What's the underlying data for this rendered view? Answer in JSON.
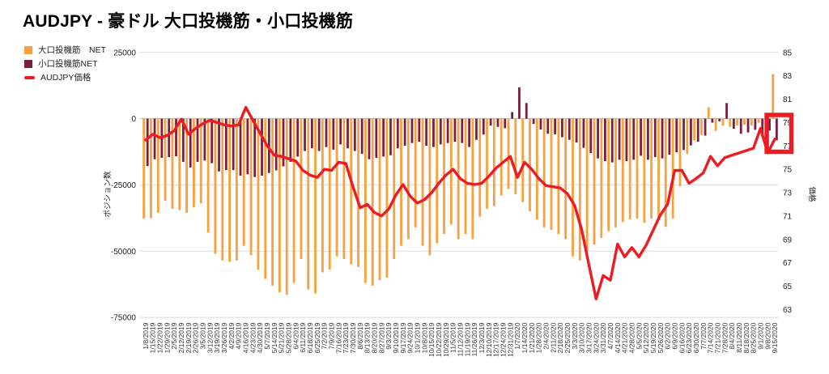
{
  "title": "AUDJPY - 豪ドル 大口投機筋・小口投機筋",
  "legend": {
    "items": [
      {
        "label": "大口投機筋　NET",
        "color": "#F8A13E",
        "shape": "square"
      },
      {
        "label": "小口投機筋NET",
        "color": "#7B1F3E",
        "shape": "square"
      },
      {
        "label": "AUDJPY価格",
        "color": "#EC1C24",
        "shape": "line"
      }
    ]
  },
  "axes": {
    "left": {
      "title": "ポジション数",
      "ticks": [
        "25000",
        "0",
        "-25000",
        "-50000",
        "-75000"
      ]
    },
    "right": {
      "title": "価格",
      "ticks": [
        "85",
        "83",
        "81",
        "79",
        "77",
        "75",
        "73",
        "71",
        "69",
        "67",
        "65",
        "63"
      ]
    }
  },
  "annotation": {
    "type": "rect",
    "color": "#ED1C24",
    "note": "red box highlighting latest week bars"
  },
  "chart_data": {
    "type": "bar+line",
    "title": "AUDJPY - 豪ドル 大口投機筋・小口投機筋",
    "ylabel_left": "ポジション数",
    "ylabel_right": "価格",
    "ylim_left": [
      -75000,
      25000
    ],
    "ylim_right": [
      63,
      85
    ],
    "grid_values_left": [
      25000,
      0,
      -25000,
      -50000,
      -75000
    ],
    "legend_position": "top-left",
    "categories": [
      "1/8/2019",
      "1/15/2019",
      "1/22/2019",
      "1/29/2019",
      "2/5/2019",
      "2/12/2019",
      "2/19/2019",
      "2/26/2019",
      "3/5/2019",
      "3/12/2019",
      "3/19/2019",
      "3/26/2019",
      "4/2/2019",
      "4/9/2019",
      "4/16/2019",
      "4/23/2019",
      "4/30/2019",
      "5/7/2019",
      "5/14/2019",
      "5/21/2019",
      "5/28/2019",
      "6/4/2019",
      "6/11/2019",
      "6/18/2019",
      "6/25/2019",
      "7/2/2019",
      "7/9/2019",
      "7/16/2019",
      "7/23/2019",
      "7/30/2019",
      "8/6/2019",
      "8/13/2019",
      "8/20/2019",
      "8/27/2019",
      "9/3/2019",
      "9/10/2019",
      "9/17/2019",
      "9/24/2019",
      "10/1/2019",
      "10/8/2019",
      "10/15/2019",
      "10/22/2019",
      "10/29/2019",
      "11/5/2019",
      "11/12/2019",
      "11/19/2019",
      "11/26/2019",
      "12/3/2019",
      "12/10/2019",
      "12/17/2019",
      "12/24/2019",
      "12/31/2019",
      "1/7/2020",
      "1/14/2020",
      "1/21/2020",
      "1/28/2020",
      "2/4/2020",
      "2/11/2020",
      "2/18/2020",
      "2/25/2020",
      "3/3/2020",
      "3/10/2020",
      "3/17/2020",
      "3/24/2020",
      "3/31/2020",
      "4/7/2020",
      "4/14/2020",
      "4/21/2020",
      "4/28/2020",
      "5/5/2020",
      "5/12/2020",
      "5/19/2020",
      "5/26/2020",
      "6/2/2020",
      "6/9/2020",
      "6/16/2020",
      "6/23/2020",
      "6/30/2020",
      "7/7/2020",
      "7/14/2020",
      "7/21/2020",
      "7/28/2020",
      "8/4/2020",
      "8/11/2020",
      "8/18/2020",
      "8/25/2020",
      "9/1/2020",
      "9/8/2020",
      "9/15/2020"
    ],
    "series": [
      {
        "name": "大口投機筋　NET",
        "type": "bar",
        "axis": "left",
        "color": "#F8A13E",
        "values": [
          -37700,
          -37500,
          -35500,
          -31000,
          -34000,
          -34500,
          -35500,
          -33500,
          -32000,
          -43000,
          -51000,
          -53500,
          -54000,
          -53500,
          -48000,
          -51500,
          -57000,
          -60500,
          -63000,
          -65500,
          -66500,
          -62000,
          -53000,
          -64500,
          -66000,
          -58000,
          -57000,
          -52000,
          -53000,
          -55000,
          -56000,
          -62000,
          -63000,
          -61000,
          -60000,
          -53000,
          -48000,
          -45500,
          -41000,
          -48000,
          -51500,
          -47000,
          -43500,
          -40000,
          -45500,
          -43500,
          -45500,
          -37000,
          -34000,
          -33000,
          -29000,
          -26500,
          -28500,
          -31500,
          -35000,
          -38000,
          -41000,
          -42000,
          -43500,
          -45500,
          -52000,
          -53500,
          -50000,
          -47500,
          -45000,
          -42500,
          -41000,
          -39000,
          -38000,
          -37700,
          -39300,
          -37700,
          -38300,
          -40800,
          -37700,
          -25500,
          -13300,
          -8200,
          -6200,
          4300,
          -4600,
          -2600,
          -3100,
          -2600,
          -2300,
          -2600,
          -1500,
          -2000,
          16800
        ]
      },
      {
        "name": "小口投機筋NET",
        "type": "bar",
        "axis": "left",
        "color": "#7B1F3E",
        "values": [
          -17900,
          -15300,
          -14800,
          -14500,
          -14200,
          -16300,
          -18400,
          -16300,
          -15800,
          -16800,
          -19900,
          -19400,
          -19400,
          -21500,
          -21000,
          -22000,
          -21500,
          -20500,
          -19500,
          -18000,
          -16300,
          -14300,
          -12200,
          -11200,
          -12200,
          -10700,
          -11700,
          -9700,
          -11200,
          -12200,
          -13300,
          -15300,
          -14800,
          -14300,
          -13800,
          -11200,
          -10200,
          -9200,
          -8700,
          -10200,
          -10700,
          -9700,
          -9200,
          -8700,
          -9200,
          -10700,
          -8000,
          -6000,
          -2600,
          -3100,
          -3600,
          2500,
          11800,
          5900,
          -2000,
          -4100,
          -5700,
          -5900,
          -7000,
          -8000,
          -9000,
          -11000,
          -13000,
          -15000,
          -16000,
          -16500,
          -15500,
          -16000,
          -15500,
          -14000,
          -15500,
          -14500,
          -15000,
          -13600,
          -12700,
          -11800,
          -10100,
          -8700,
          -6400,
          -1500,
          -1000,
          5900,
          -3800,
          -5700,
          -5200,
          -4200,
          -6700,
          -4500,
          -8200
        ]
      },
      {
        "name": "AUDJPY価格",
        "type": "line",
        "axis": "right",
        "color": "#EC1C24",
        "values": [
          77.5,
          78.0,
          77.7,
          77.9,
          78.3,
          79.3,
          78.0,
          78.5,
          78.9,
          79.2,
          79.0,
          78.8,
          78.7,
          78.8,
          80.3,
          79.2,
          78.1,
          77.0,
          76.2,
          76.1,
          75.9,
          75.7,
          74.9,
          74.5,
          74.3,
          75.0,
          74.9,
          75.6,
          75.5,
          73.5,
          71.7,
          72.0,
          71.3,
          71.0,
          71.6,
          72.8,
          73.7,
          72.7,
          72.1,
          72.4,
          73.0,
          73.8,
          74.5,
          75.0,
          74.2,
          73.8,
          73.7,
          73.8,
          74.4,
          75.1,
          75.6,
          76.1,
          74.3,
          75.6,
          75.0,
          74.2,
          73.6,
          73.5,
          73.4,
          72.9,
          71.9,
          69.8,
          66.8,
          63.9,
          65.9,
          65.5,
          68.6,
          67.5,
          68.3,
          67.5,
          68.5,
          69.8,
          71.1,
          72.0,
          74.9,
          74.9,
          73.8,
          74.2,
          74.7,
          76.1,
          75.3,
          76.0,
          76.2,
          76.4,
          76.6,
          76.8,
          78.5,
          76.4,
          77.6
        ]
      }
    ]
  },
  "colors": {
    "grid": "#DCDCDC",
    "zero_line": "#C0C0C0",
    "tick_text": "#222222",
    "x_label_text": "#333333"
  }
}
